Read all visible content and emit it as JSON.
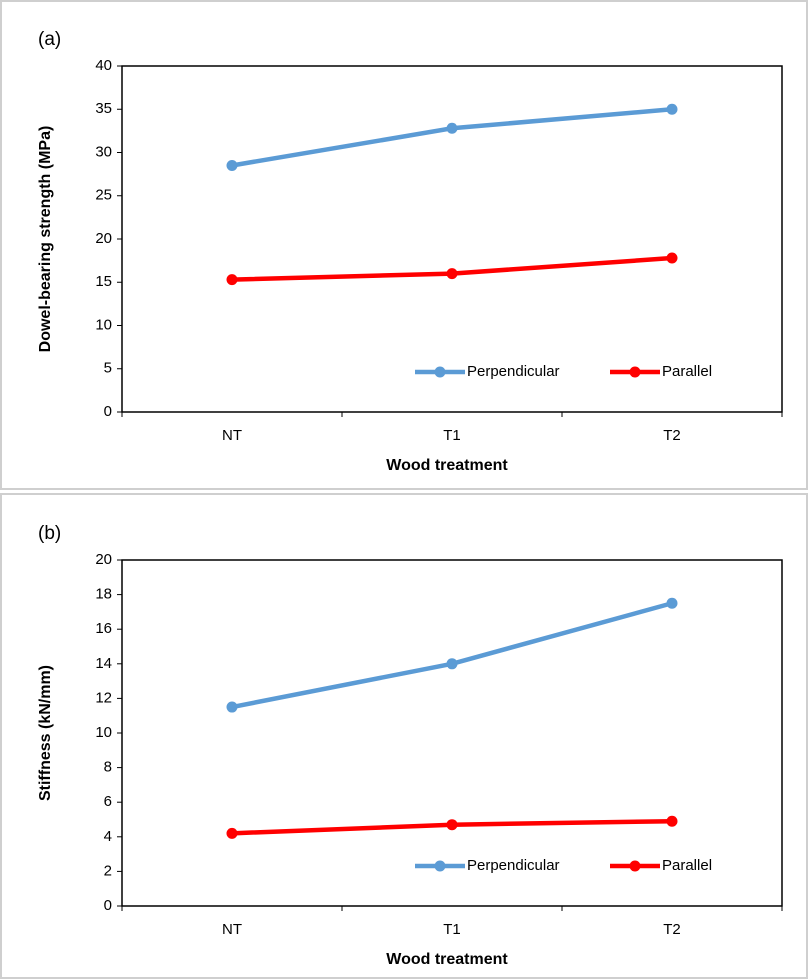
{
  "chart_data": [
    {
      "type": "line",
      "label": "(a)",
      "x_label": "Wood treatment",
      "y_label": "Dowel-bearing strength (MPa)",
      "categories": [
        "NT",
        "T1",
        "T2"
      ],
      "series": [
        {
          "name": "Perpendicular",
          "color": "#5b9bd5",
          "values": [
            28.5,
            32.8,
            35.0
          ]
        },
        {
          "name": "Parallel",
          "color": "#ff0000",
          "values": [
            15.3,
            16.0,
            17.8
          ]
        }
      ],
      "ylim": [
        0,
        40
      ],
      "yticks": [
        0,
        5,
        10,
        15,
        20,
        25,
        30,
        35,
        40
      ],
      "grid": false,
      "legend": "lower right"
    },
    {
      "type": "line",
      "label": "(b)",
      "x_label": "Wood treatment",
      "y_label": "Stiffness (kN/mm)",
      "categories": [
        "NT",
        "T1",
        "T2"
      ],
      "series": [
        {
          "name": "Perpendicular",
          "color": "#5b9bd5",
          "values": [
            11.5,
            14.0,
            17.5
          ]
        },
        {
          "name": "Parallel",
          "color": "#ff0000",
          "values": [
            4.2,
            4.7,
            4.9
          ]
        }
      ],
      "ylim": [
        0,
        20
      ],
      "yticks": [
        0,
        2,
        4,
        6,
        8,
        10,
        12,
        14,
        16,
        18,
        20
      ],
      "grid": false,
      "legend": "lower right"
    }
  ]
}
